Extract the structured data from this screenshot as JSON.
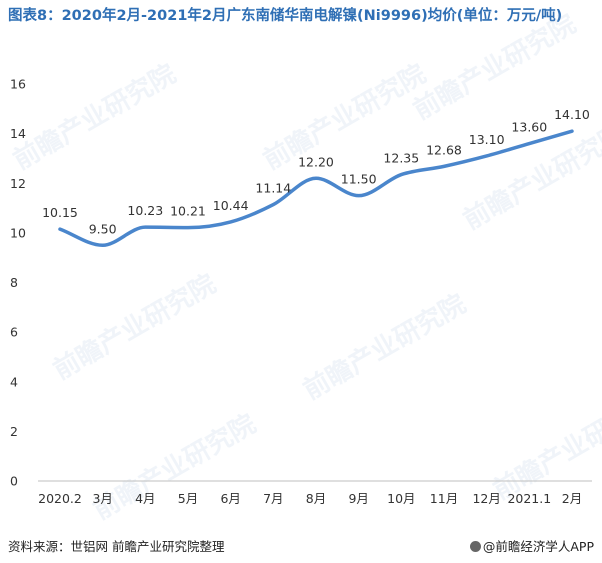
{
  "title": "图表8：2020年2月-2021年2月广东南储华南电解镍(Ni9996)均价(单位：万元/吨)",
  "footer": {
    "source": "资料来源：世铝网 前瞻产业研究院整理",
    "brand": "@前瞻经济学人APP"
  },
  "watermark": "前瞻产业研究院",
  "colors": {
    "line": "#4a86cc",
    "title": "#2f6fb5"
  },
  "chart_data": {
    "type": "line",
    "categories": [
      "2020.2",
      "3月",
      "4月",
      "5月",
      "6月",
      "7月",
      "8月",
      "9月",
      "10月",
      "11月",
      "12月",
      "2021.1",
      "2月"
    ],
    "values": [
      10.15,
      9.5,
      10.23,
      10.21,
      10.44,
      11.14,
      12.2,
      11.5,
      12.35,
      12.68,
      13.1,
      13.6,
      14.1
    ],
    "value_labels": [
      "10.15",
      "9.50",
      "10.23",
      "10.21",
      "10.44",
      "11.14",
      "12.20",
      "11.50",
      "12.35",
      "12.68",
      "13.10",
      "13.60",
      "14.10"
    ],
    "ylim": [
      0,
      16
    ],
    "yticks": [
      "0",
      "2",
      "4",
      "6",
      "8",
      "10",
      "12",
      "14",
      "16"
    ],
    "grid": false,
    "legend": "none"
  }
}
